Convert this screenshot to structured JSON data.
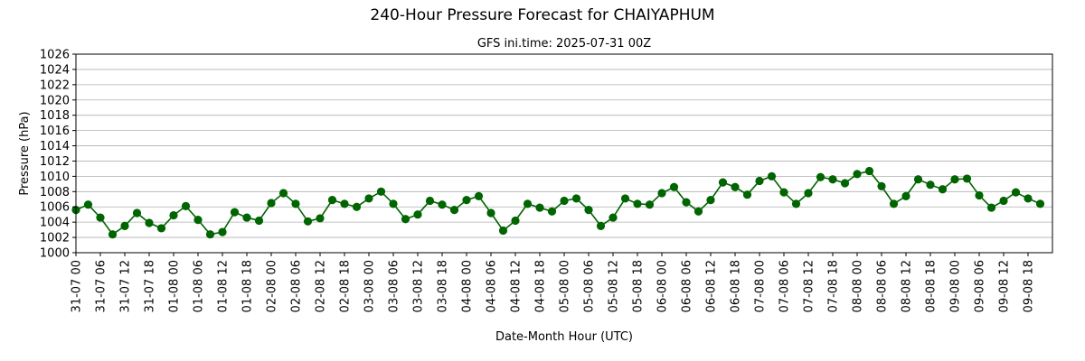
{
  "chart_data": {
    "type": "line",
    "title": "240-Hour Pressure Forecast for CHAIYAPHUM",
    "subtitle": "GFS ini.time: 2025-07-31 00Z",
    "xlabel": "Date-Month Hour (UTC)",
    "ylabel": "Pressure (hPa)",
    "ylim": [
      1000,
      1026
    ],
    "yticks": [
      1000,
      1002,
      1004,
      1006,
      1008,
      1010,
      1012,
      1014,
      1016,
      1018,
      1020,
      1022,
      1024,
      1026
    ],
    "x_step_hours": 3,
    "xtick_labels": [
      "31-07 00",
      "31-07 06",
      "31-07 12",
      "31-07 18",
      "01-08 00",
      "01-08 06",
      "01-08 12",
      "01-08 18",
      "02-08 00",
      "02-08 06",
      "02-08 12",
      "02-08 18",
      "03-08 00",
      "03-08 06",
      "03-08 12",
      "03-08 18",
      "04-08 00",
      "04-08 06",
      "04-08 12",
      "04-08 18",
      "05-08 00",
      "05-08 06",
      "05-08 12",
      "05-08 18",
      "06-08 00",
      "06-08 06",
      "06-08 12",
      "06-08 18",
      "07-08 00",
      "07-08 06",
      "07-08 12",
      "07-08 18",
      "08-08 00",
      "08-08 06",
      "08-08 12",
      "08-08 18",
      "09-08 00",
      "09-08 06",
      "09-08 12",
      "09-08 18"
    ],
    "grid": "horizontal",
    "line_color": "#006400",
    "series": [
      {
        "values": [
          1005.6,
          1006.3,
          1004.6,
          1002.4,
          1003.5,
          1005.2,
          1003.9,
          1003.2,
          1004.9,
          1006.1,
          1004.3,
          1002.4,
          1002.7,
          1005.3,
          1004.6,
          1004.2,
          1006.5,
          1007.8,
          1006.4,
          1004.1,
          1004.5,
          1006.9,
          1006.4,
          1006.0,
          1007.1,
          1008.0,
          1006.4,
          1004.4,
          1005.0,
          1006.8,
          1006.3,
          1005.6,
          1006.9,
          1007.4,
          1005.2,
          1002.9,
          1004.2,
          1006.4,
          1005.9,
          1005.4,
          1006.8,
          1007.1,
          1005.6,
          1003.5,
          1004.6,
          1007.1,
          1006.4,
          1006.3,
          1007.8,
          1008.6,
          1006.6,
          1005.4,
          1006.9,
          1009.2,
          1008.6,
          1007.6,
          1009.4,
          1010.0,
          1007.9,
          1006.4,
          1007.8,
          1009.9,
          1009.6,
          1009.1,
          1010.3,
          1010.7,
          1008.7,
          1006.4,
          1007.4,
          1009.6,
          1008.9,
          1008.3,
          1009.6,
          1009.7,
          1007.5,
          1005.9,
          1006.8,
          1007.9,
          1007.1,
          1006.4
        ]
      }
    ]
  }
}
